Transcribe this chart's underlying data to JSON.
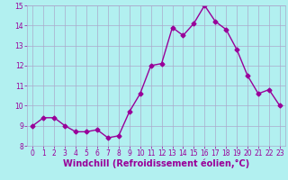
{
  "x": [
    0,
    1,
    2,
    3,
    4,
    5,
    6,
    7,
    8,
    9,
    10,
    11,
    12,
    13,
    14,
    15,
    16,
    17,
    18,
    19,
    20,
    21,
    22,
    23
  ],
  "y": [
    9.0,
    9.4,
    9.4,
    9.0,
    8.7,
    8.7,
    8.8,
    8.4,
    8.5,
    9.7,
    10.6,
    12.0,
    12.1,
    13.9,
    13.5,
    14.1,
    15.0,
    14.2,
    13.8,
    12.8,
    11.5,
    10.6,
    10.8,
    10.0
  ],
  "line_color": "#990099",
  "marker": "D",
  "marker_size": 2.5,
  "background_color": "#b2f0f0",
  "grid_color": "#aaaacc",
  "xlabel": "Windchill (Refroidissement éolien,°C)",
  "xlabel_color": "#990099",
  "ylim": [
    8,
    15
  ],
  "xlim_min": -0.5,
  "xlim_max": 23.5,
  "yticks": [
    8,
    9,
    10,
    11,
    12,
    13,
    14,
    15
  ],
  "xticks": [
    0,
    1,
    2,
    3,
    4,
    5,
    6,
    7,
    8,
    9,
    10,
    11,
    12,
    13,
    14,
    15,
    16,
    17,
    18,
    19,
    20,
    21,
    22,
    23
  ],
  "tick_color": "#990099",
  "tick_fontsize": 5.5,
  "xlabel_fontsize": 7.0,
  "linewidth": 1.0
}
